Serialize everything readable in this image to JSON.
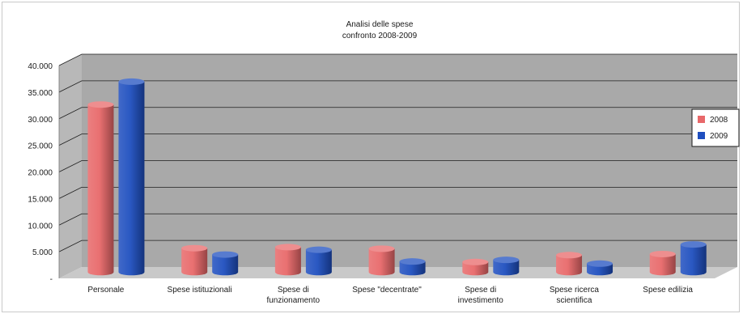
{
  "chart_data": {
    "type": "bar",
    "title": "Analisi delle spese",
    "subtitle": "confronto 2008-2009",
    "categories": [
      [
        "Personale"
      ],
      [
        "Spese istituzionali"
      ],
      [
        "Spese di",
        "funzionamento"
      ],
      [
        "Spese \"decentrate\""
      ],
      [
        "Spese di",
        "investimento"
      ],
      [
        "Spese ricerca",
        "scientifica"
      ],
      [
        "Spese edilizia"
      ]
    ],
    "series": [
      {
        "name": "2008",
        "color": "#e8686a",
        "values": [
          31500,
          4500,
          4700,
          4400,
          1900,
          3200,
          3400
        ]
      },
      {
        "name": "2009",
        "color": "#1f4fbf",
        "values": [
          35800,
          3300,
          4200,
          2000,
          2300,
          1600,
          5200
        ]
      }
    ],
    "y_ticks": [
      "-",
      "5.000",
      "10.000",
      "15.000",
      "20.000",
      "25.000",
      "30.000",
      "35.000",
      "40.000"
    ],
    "ylim": [
      0,
      40000
    ],
    "grid": true,
    "legend_position": "right",
    "style": "3d-cylinder"
  }
}
